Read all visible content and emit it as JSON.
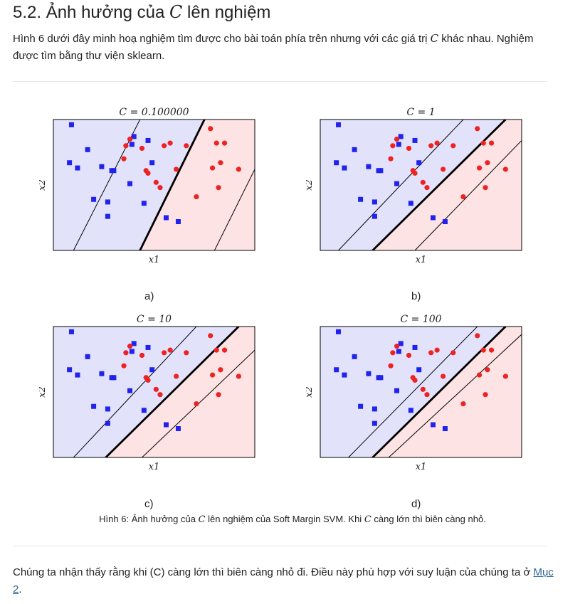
{
  "section": {
    "number": "5.2.",
    "title_pre": "Ảnh hưởng của",
    "title_var": "C",
    "title_post": "lên nghiệm"
  },
  "intro": {
    "part1": "Hình 6 dưới đây minh hoạ nghiệm tìm được cho bài toán phía trên nhưng với các giá trị",
    "var": "C",
    "part2": "khác nhau. Nghiệm được tìm bằng thư viện sklearn."
  },
  "colors": {
    "class_blue_fill": "#e2e3fb",
    "class_red_fill": "#fde3e3",
    "blue_marker": "#2222ee",
    "red_marker": "#ee2222",
    "link": "#2a6496"
  },
  "chart_data": [
    {
      "type": "scatter",
      "subfig": "a)",
      "title": "C = 0.100000",
      "xlabel": "x1",
      "ylabel": "x2",
      "decision_line": [
        [
          0.43,
          0.0
        ],
        [
          0.75,
          1.0
        ]
      ],
      "margin_lines": [
        [
          [
            0.1,
            0.0
          ],
          [
            0.43,
            1.0
          ]
        ],
        [
          [
            0.8,
            0.0
          ],
          [
            1.0,
            0.62
          ]
        ]
      ]
    },
    {
      "type": "scatter",
      "subfig": "b)",
      "title": "C = 1",
      "xlabel": "x1",
      "ylabel": "x2",
      "decision_line": [
        [
          0.26,
          0.0
        ],
        [
          0.92,
          1.0
        ]
      ],
      "margin_lines": [
        [
          [
            0.09,
            0.0
          ],
          [
            0.71,
            1.0
          ]
        ],
        [
          [
            0.47,
            0.0
          ],
          [
            1.0,
            0.84
          ]
        ]
      ]
    },
    {
      "type": "scatter",
      "subfig": "c)",
      "title": "C = 10",
      "xlabel": "x1",
      "ylabel": "x2",
      "decision_line": [
        [
          0.26,
          0.0
        ],
        [
          0.92,
          1.0
        ]
      ],
      "margin_lines": [
        [
          [
            0.1,
            0.0
          ],
          [
            0.71,
            1.0
          ]
        ],
        [
          [
            0.44,
            0.0
          ],
          [
            1.0,
            0.82
          ]
        ]
      ]
    },
    {
      "type": "scatter",
      "subfig": "d)",
      "title": "C = 100",
      "xlabel": "x1",
      "ylabel": "x2",
      "decision_line": [
        [
          0.26,
          0.0
        ],
        [
          0.92,
          1.0
        ]
      ],
      "margin_lines": [
        [
          [
            0.14,
            0.0
          ],
          [
            0.78,
            1.0
          ]
        ],
        [
          [
            0.34,
            0.0
          ],
          [
            1.0,
            0.94
          ]
        ]
      ]
    }
  ],
  "points": {
    "blue": [
      [
        0.09,
        0.96
      ],
      [
        0.17,
        0.77
      ],
      [
        0.08,
        0.67
      ],
      [
        0.12,
        0.63
      ],
      [
        0.24,
        0.64
      ],
      [
        0.29,
        0.61
      ],
      [
        0.3,
        0.61
      ],
      [
        0.39,
        0.81
      ],
      [
        0.4,
        0.87
      ],
      [
        0.47,
        0.84
      ],
      [
        0.38,
        0.51
      ],
      [
        0.2,
        0.39
      ],
      [
        0.27,
        0.37
      ],
      [
        0.27,
        0.26
      ],
      [
        0.45,
        0.36
      ],
      [
        0.56,
        0.25
      ],
      [
        0.62,
        0.22
      ],
      [
        0.49,
        0.67
      ]
    ],
    "red": [
      [
        0.36,
        0.8
      ],
      [
        0.38,
        0.85
      ],
      [
        0.44,
        0.78
      ],
      [
        0.55,
        0.8
      ],
      [
        0.58,
        0.82
      ],
      [
        0.66,
        0.8
      ],
      [
        0.78,
        0.93
      ],
      [
        0.81,
        0.82
      ],
      [
        0.85,
        0.82
      ],
      [
        0.83,
        0.67
      ],
      [
        0.79,
        0.63
      ],
      [
        0.92,
        0.62
      ],
      [
        0.35,
        0.7
      ],
      [
        0.47,
        0.59
      ],
      [
        0.51,
        0.52
      ],
      [
        0.53,
        0.48
      ],
      [
        0.61,
        0.62
      ],
      [
        0.71,
        0.41
      ],
      [
        0.82,
        0.48
      ],
      [
        0.46,
        0.61
      ]
    ]
  },
  "caption": {
    "pre": "Hình 6: Ảnh hưởng của",
    "var1": "C",
    "mid": "lên nghiệm của Soft Margin SVM. Khi",
    "var2": "C",
    "post": "càng lớn thì biên càng nhỏ."
  },
  "outro": {
    "text": "Chúng ta nhận thấy rằng khi (C) càng lớn thì biên càng nhỏ đi. Điều này phù hợp với suy luận của chúng ta ở",
    "link": "Mục 2",
    "end": "."
  }
}
